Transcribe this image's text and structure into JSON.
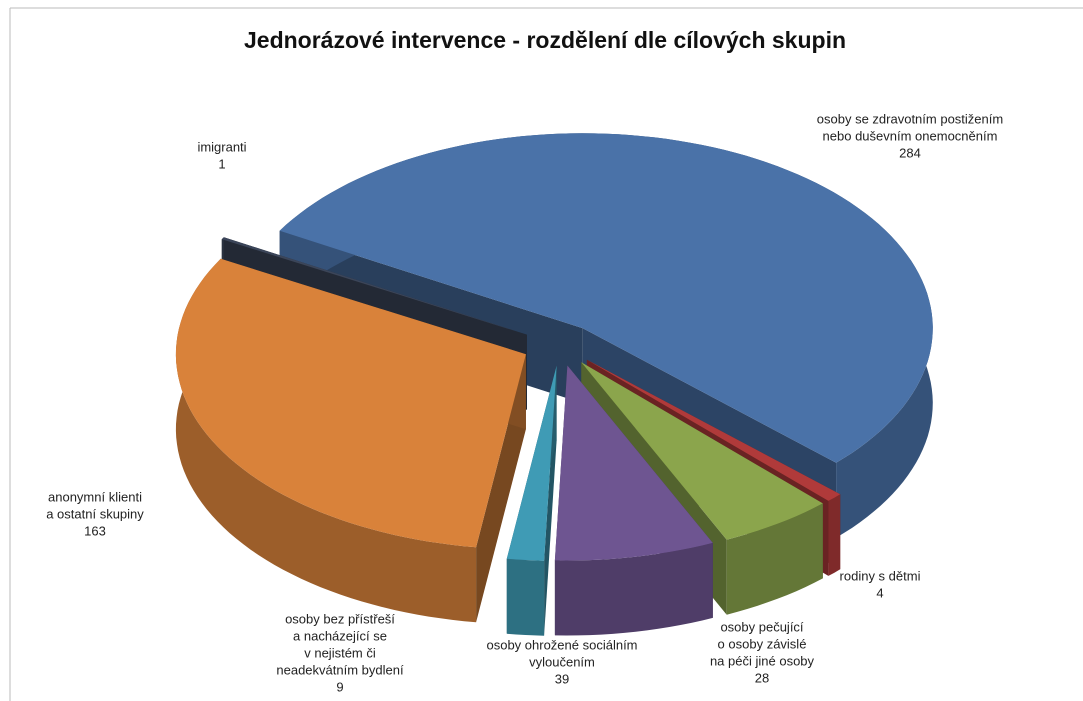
{
  "chart_data": {
    "type": "pie3d",
    "title": "Jednorázové intervence - rozdělení dle cílových skupin",
    "categories": [
      [
        "osoby se zdravotním postižením",
        "nebo duševním onemocněním"
      ],
      [
        "rodiny s dětmi"
      ],
      [
        "osoby pečující",
        "o osoby závislé",
        "na péči jiné osoby"
      ],
      [
        "osoby ohrožené sociálním",
        "vyloučením"
      ],
      [
        "osoby bez přístřeší",
        "a nacházející se",
        "v nejistém či",
        "neadekvátním bydlení"
      ],
      [
        "anonymní klienti",
        "a ostatní skupiny"
      ],
      [
        "imigranti"
      ]
    ],
    "values": [
      284,
      4,
      28,
      39,
      9,
      163,
      1
    ],
    "colors": [
      "#4a72a8",
      "#b03a3a",
      "#8ba54c",
      "#6e5591",
      "#3f9bb5",
      "#d9823a",
      "#3b4559"
    ]
  }
}
